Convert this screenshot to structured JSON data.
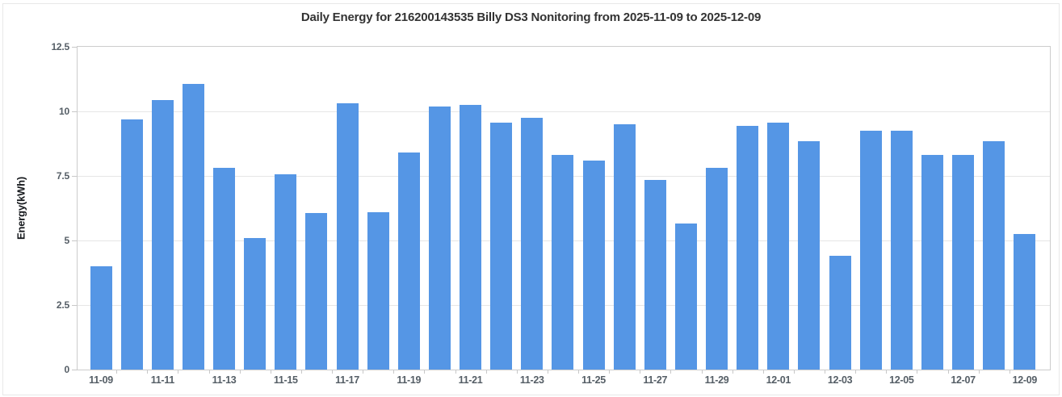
{
  "chart_data": {
    "type": "bar",
    "title": "Daily Energy for 216200143535 Billy DS3 Nonitoring from 2025-11-09 to 2025-12-09",
    "xlabel": "",
    "ylabel": "Energy(kWh)",
    "ylim": [
      0,
      12.5
    ],
    "y_ticks": [
      0,
      2.5,
      5,
      7.5,
      10,
      12.5
    ],
    "y_tick_labels": [
      "0",
      "2.5",
      "5",
      "7.5",
      "10",
      "12.5"
    ],
    "x_label_interval": 2,
    "x_tick_labels": [
      "11-09",
      "11-11",
      "11-13",
      "11-15",
      "11-17",
      "11-19",
      "11-21",
      "11-23",
      "11-25",
      "11-27",
      "11-29",
      "12-01",
      "12-03",
      "12-05",
      "12-07",
      "12-09"
    ],
    "categories": [
      "11-09",
      "11-10",
      "11-11",
      "11-12",
      "11-13",
      "11-14",
      "11-15",
      "11-16",
      "11-17",
      "11-18",
      "11-19",
      "11-20",
      "11-21",
      "11-22",
      "11-23",
      "11-24",
      "11-25",
      "11-26",
      "11-27",
      "11-28",
      "11-29",
      "11-30",
      "12-01",
      "12-02",
      "12-03",
      "12-04",
      "12-05",
      "12-06",
      "12-07",
      "12-08",
      "12-09"
    ],
    "values": [
      4.0,
      9.7,
      10.45,
      11.05,
      7.8,
      5.1,
      7.55,
      6.05,
      10.3,
      6.1,
      8.4,
      10.2,
      10.25,
      9.55,
      9.75,
      8.3,
      8.1,
      9.5,
      7.35,
      5.65,
      7.8,
      9.45,
      9.55,
      8.85,
      4.4,
      9.25,
      9.25,
      8.3,
      8.3,
      8.85,
      5.25
    ],
    "grid": true,
    "legend": "none",
    "colors": {
      "bar": "#5596e5",
      "grid_line": "#e6e6e6",
      "plot_border": "#cccccc",
      "axis_tick": "#c8c8c8",
      "title_text": "#333333",
      "tick_text": "#555e66",
      "axis_title_text": "#16191d",
      "card_border": "#e8e8e8",
      "background": "#ffffff"
    }
  }
}
